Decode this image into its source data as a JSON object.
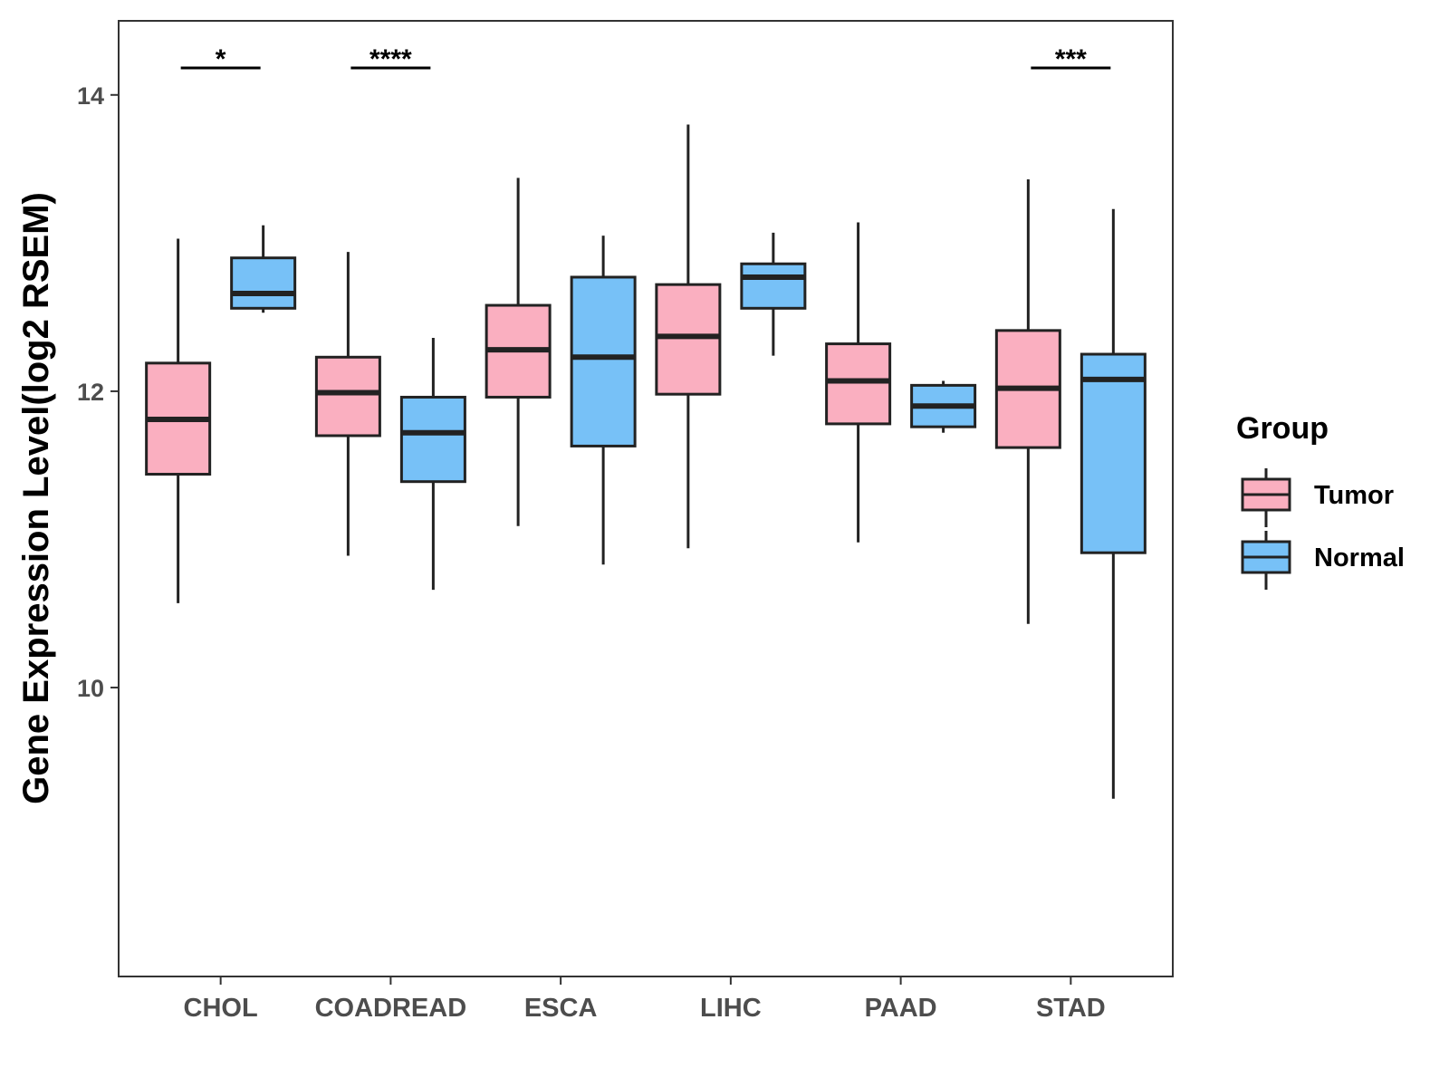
{
  "chart_data": {
    "type": "boxplot",
    "ylabel": "Gene Expression Level(log2 RSEM)",
    "xlabel": "",
    "ylim": [
      8.05,
      14.5
    ],
    "yticks": [
      10,
      12,
      14
    ],
    "grid": false,
    "categories": [
      "CHOL",
      "COADREAD",
      "ESCA",
      "LIHC",
      "PAAD",
      "STAD"
    ],
    "legend": {
      "title": "Group",
      "position": "right",
      "entries": [
        {
          "name": "Tumor",
          "color": "#FAAFC0"
        },
        {
          "name": "Normal",
          "color": "#77C1F7"
        }
      ]
    },
    "series": [
      {
        "name": "Tumor",
        "color": "#FAAFC0",
        "boxes": [
          {
            "category": "CHOL",
            "min": 10.57,
            "q1": 11.44,
            "median": 11.81,
            "q3": 12.19,
            "max": 13.03
          },
          {
            "category": "COADREAD",
            "min": 10.89,
            "q1": 11.7,
            "median": 11.99,
            "q3": 12.23,
            "max": 12.94
          },
          {
            "category": "ESCA",
            "min": 11.09,
            "q1": 11.96,
            "median": 12.28,
            "q3": 12.58,
            "max": 13.44
          },
          {
            "category": "LIHC",
            "min": 10.94,
            "q1": 11.98,
            "median": 12.37,
            "q3": 12.72,
            "max": 13.8
          },
          {
            "category": "PAAD",
            "min": 10.98,
            "q1": 11.78,
            "median": 12.07,
            "q3": 12.32,
            "max": 13.14
          },
          {
            "category": "STAD",
            "min": 10.43,
            "q1": 11.62,
            "median": 12.02,
            "q3": 12.41,
            "max": 13.43
          }
        ]
      },
      {
        "name": "Normal",
        "color": "#77C1F7",
        "boxes": [
          {
            "category": "CHOL",
            "min": 12.53,
            "q1": 12.56,
            "median": 12.66,
            "q3": 12.9,
            "max": 13.12
          },
          {
            "category": "COADREAD",
            "min": 10.66,
            "q1": 11.39,
            "median": 11.72,
            "q3": 11.96,
            "max": 12.36
          },
          {
            "category": "ESCA",
            "min": 10.83,
            "q1": 11.63,
            "median": 12.23,
            "q3": 12.77,
            "max": 13.05
          },
          {
            "category": "LIHC",
            "min": 12.24,
            "q1": 12.56,
            "median": 12.77,
            "q3": 12.86,
            "max": 13.07
          },
          {
            "category": "PAAD",
            "min": 11.72,
            "q1": 11.76,
            "median": 11.9,
            "q3": 12.04,
            "max": 12.07
          },
          {
            "category": "STAD",
            "min": 9.25,
            "q1": 10.91,
            "median": 12.08,
            "q3": 12.25,
            "max": 13.23
          }
        ]
      }
    ],
    "annotations": [
      {
        "category": "CHOL",
        "label": "*"
      },
      {
        "category": "COADREAD",
        "label": "****"
      },
      {
        "category": "STAD",
        "label": "***"
      }
    ]
  }
}
